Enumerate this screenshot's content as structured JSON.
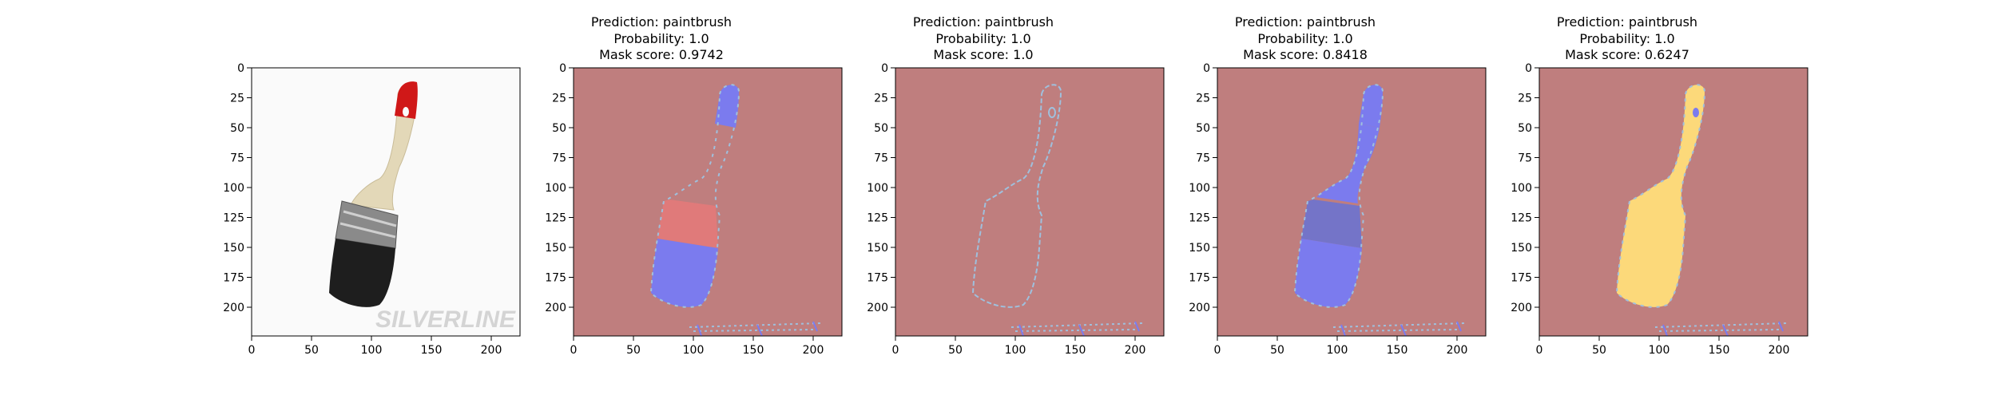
{
  "axes": {
    "x_ticks": [
      0,
      50,
      100,
      150,
      200
    ],
    "y_ticks": [
      0,
      25,
      50,
      75,
      100,
      125,
      150,
      175,
      200
    ],
    "xlim": [
      0,
      224
    ],
    "ylim": [
      224,
      0
    ]
  },
  "panels": [
    {
      "kind": "original",
      "title": [],
      "watermark": "SILVERLINE"
    },
    {
      "kind": "mask",
      "title": [
        "Prediction: paintbrush",
        "Probability: 1.0",
        "Mask score: 0.9742"
      ]
    },
    {
      "kind": "mask",
      "title": [
        "Prediction: paintbrush",
        "Probability: 1.0",
        "Mask score: 1.0"
      ]
    },
    {
      "kind": "mask",
      "title": [
        "Prediction: paintbrush",
        "Probability: 1.0",
        "Mask score: 0.8418"
      ]
    },
    {
      "kind": "mask",
      "title": [
        "Prediction: paintbrush",
        "Probability: 1.0",
        "Mask score: 0.6247"
      ]
    }
  ],
  "colors": {
    "background_mask": "#bf7e7e",
    "mask_blue": "#7b7bee",
    "mask_red": "#e07a7a",
    "mask_yellow": "#fcd97a",
    "outline": "#9fc0dd",
    "handle": "#e3d8b8",
    "tip_red": "#d01818",
    "ferrule": "#8a8a8a",
    "bristles": "#1e1e1e",
    "watermark": "#d4d4d4"
  }
}
